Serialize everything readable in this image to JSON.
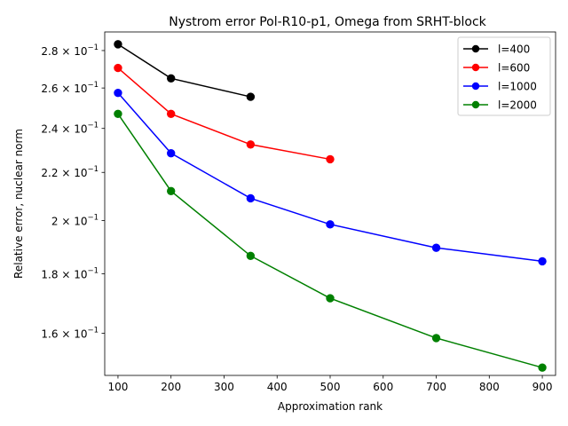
{
  "chart_data": {
    "type": "line",
    "title": "Nystrom error Pol-R10-p1, Omega from SRHT-block",
    "xlabel": "Approximation rank",
    "ylabel": "Relative error, nuclear norm",
    "xlim": [
      75,
      925
    ],
    "ylim": [
      0.1472,
      0.2905
    ],
    "yscale": "log",
    "x_ticks": [
      100,
      200,
      300,
      400,
      500,
      600,
      700,
      800,
      900
    ],
    "y_ticks": [
      {
        "value": 0.16,
        "mantissa": "1.6",
        "base": "10",
        "exp": "−1"
      },
      {
        "value": 0.18,
        "mantissa": "1.8",
        "base": "10",
        "exp": "−1"
      },
      {
        "value": 0.2,
        "mantissa": "2",
        "base": "10",
        "exp": "−1"
      },
      {
        "value": 0.22,
        "mantissa": "2.2",
        "base": "10",
        "exp": "−1"
      },
      {
        "value": 0.24,
        "mantissa": "2.4",
        "base": "10",
        "exp": "−1"
      },
      {
        "value": 0.26,
        "mantissa": "2.6",
        "base": "10",
        "exp": "−1"
      },
      {
        "value": 0.28,
        "mantissa": "2.8",
        "base": "10",
        "exp": "−1"
      }
    ],
    "legend_position": "top-right",
    "series": [
      {
        "name": "l=400",
        "color": "#000000",
        "x": [
          100,
          200,
          350
        ],
        "y": [
          0.2835,
          0.265,
          0.2555
        ]
      },
      {
        "name": "l=600",
        "color": "#ff0000",
        "x": [
          100,
          200,
          350,
          500
        ],
        "y": [
          0.2705,
          0.247,
          0.2325,
          0.2258
        ]
      },
      {
        "name": "l=1000",
        "color": "#0000ff",
        "x": [
          100,
          200,
          350,
          500,
          700,
          900
        ],
        "y": [
          0.2575,
          0.2285,
          0.209,
          0.1985,
          0.1895,
          0.1845
        ]
      },
      {
        "name": "l=2000",
        "color": "#008000",
        "x": [
          100,
          200,
          350,
          500,
          700,
          900
        ],
        "y": [
          0.247,
          0.212,
          0.1865,
          0.1715,
          0.1585,
          0.1495
        ]
      }
    ]
  }
}
